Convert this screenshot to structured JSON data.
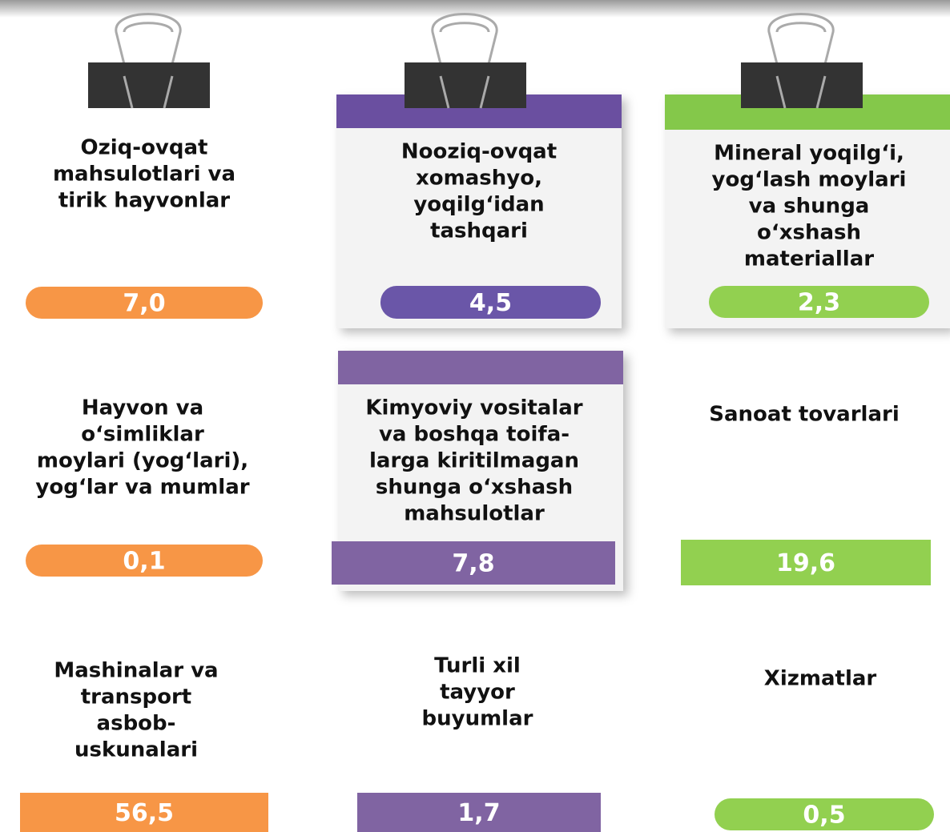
{
  "items": [
    {
      "lines": [
        "Oziq-ovqat",
        "mahsulotlari va",
        "tirik hayvonlar"
      ],
      "value": "7,0"
    },
    {
      "lines": [
        "Nooziq-ovqat",
        "xomashyo,",
        "yoqilg‘idan",
        "tashqari"
      ],
      "value": "4,5"
    },
    {
      "lines": [
        "Mineral yoqilg‘i,",
        "yog‘lash moylari",
        "va shunga",
        "o‘xshash",
        "materiallar"
      ],
      "value": "2,3"
    },
    {
      "lines": [
        "Hayvon va",
        "o‘simliklar",
        "moylari (yog‘lari),",
        "yog‘lar va mumlar"
      ],
      "value": "0,1"
    },
    {
      "lines": [
        "Kimyoviy vositalar",
        "va boshqa toifa-",
        "larga kiritilmagan",
        "shunga o‘xshash",
        "mahsulotlar"
      ],
      "value": "7,8"
    },
    {
      "lines": [
        "Sanoat tovarlari"
      ],
      "value": "19,6"
    },
    {
      "lines": [
        "Mashinalar va",
        "transport",
        "asbob-",
        "uskunalari"
      ],
      "value": "56,5"
    },
    {
      "lines": [
        "Turli xil",
        "tayyor",
        "buyumlar"
      ],
      "value": "1,7"
    },
    {
      "lines": [
        "Xizmatlar"
      ],
      "value": "0,5"
    }
  ]
}
